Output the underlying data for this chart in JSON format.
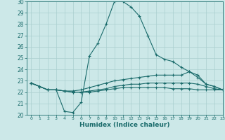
{
  "xlabel": "Humidex (Indice chaleur)",
  "ylabel": "",
  "xlim": [
    -0.5,
    23
  ],
  "ylim": [
    20,
    30
  ],
  "background_color": "#cce8e8",
  "grid_color": "#aacfcf",
  "line_color": "#1a6b6b",
  "x_ticks": [
    0,
    1,
    2,
    3,
    4,
    5,
    6,
    7,
    8,
    9,
    10,
    11,
    12,
    13,
    14,
    15,
    16,
    17,
    18,
    19,
    20,
    21,
    22,
    23
  ],
  "y_ticks": [
    20,
    21,
    22,
    23,
    24,
    25,
    26,
    27,
    28,
    29,
    30
  ],
  "line1_x": [
    0,
    1,
    2,
    3,
    4,
    5,
    6,
    7,
    8,
    9,
    10,
    11,
    12,
    13,
    14,
    15,
    16,
    17,
    18,
    19,
    20,
    21,
    22,
    23
  ],
  "line1_y": [
    22.8,
    22.5,
    22.2,
    22.2,
    20.3,
    20.2,
    21.1,
    25.2,
    26.3,
    28.0,
    30.0,
    30.0,
    29.5,
    28.7,
    27.0,
    25.3,
    24.9,
    24.7,
    24.2,
    23.8,
    23.5,
    22.7,
    22.5,
    22.2
  ],
  "line2_x": [
    0,
    1,
    2,
    3,
    4,
    5,
    6,
    7,
    8,
    9,
    10,
    11,
    12,
    13,
    14,
    15,
    16,
    17,
    18,
    19,
    20,
    21,
    22,
    23
  ],
  "line2_y": [
    22.8,
    22.5,
    22.2,
    22.2,
    22.1,
    22.1,
    22.2,
    22.4,
    22.6,
    22.8,
    23.0,
    23.1,
    23.2,
    23.3,
    23.4,
    23.5,
    23.5,
    23.5,
    23.5,
    23.8,
    23.3,
    22.7,
    22.5,
    22.2
  ],
  "line3_x": [
    0,
    1,
    2,
    3,
    4,
    5,
    6,
    7,
    8,
    9,
    10,
    11,
    12,
    13,
    14,
    15,
    16,
    17,
    18,
    19,
    20,
    21,
    22,
    23
  ],
  "line3_y": [
    22.8,
    22.5,
    22.2,
    22.2,
    22.1,
    22.0,
    22.0,
    22.1,
    22.2,
    22.3,
    22.5,
    22.6,
    22.7,
    22.7,
    22.8,
    22.8,
    22.8,
    22.8,
    22.8,
    22.8,
    22.7,
    22.5,
    22.3,
    22.2
  ],
  "line4_x": [
    0,
    1,
    2,
    3,
    4,
    5,
    6,
    7,
    8,
    9,
    10,
    11,
    12,
    13,
    14,
    15,
    16,
    17,
    18,
    19,
    20,
    21,
    22,
    23
  ],
  "line4_y": [
    22.8,
    22.5,
    22.2,
    22.2,
    22.1,
    22.0,
    22.0,
    22.0,
    22.1,
    22.2,
    22.3,
    22.4,
    22.4,
    22.4,
    22.4,
    22.4,
    22.4,
    22.3,
    22.3,
    22.3,
    22.2,
    22.2,
    22.2,
    22.2
  ]
}
